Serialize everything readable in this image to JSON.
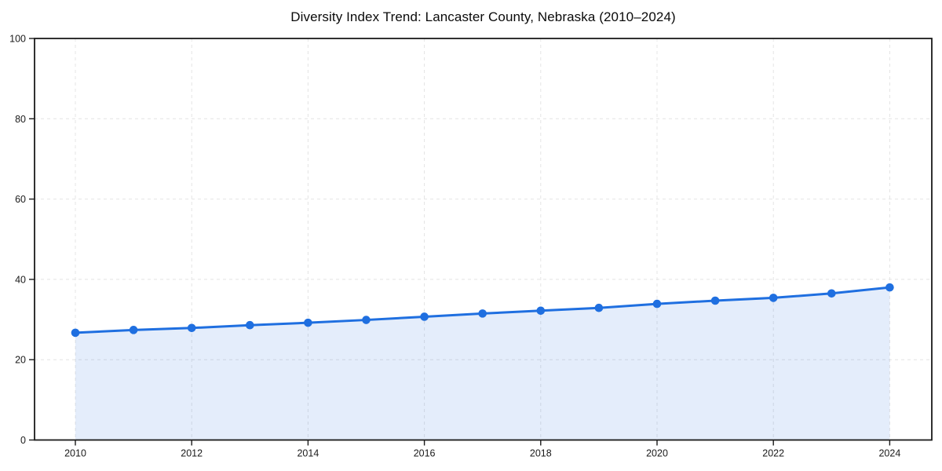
{
  "chart_data": {
    "type": "line",
    "title": "Diversity Index Trend: Lancaster County, Nebraska (2010–2024)",
    "xlabel": "",
    "ylabel": "",
    "x": [
      2010,
      2011,
      2012,
      2013,
      2014,
      2015,
      2016,
      2017,
      2018,
      2019,
      2020,
      2021,
      2022,
      2023,
      2024
    ],
    "series": [
      {
        "name": "Diversity Index",
        "values": [
          26.7,
          27.4,
          27.9,
          28.6,
          29.2,
          29.9,
          30.7,
          31.5,
          32.2,
          32.9,
          33.9,
          34.7,
          35.4,
          36.5,
          38.0
        ]
      }
    ],
    "ylim": [
      0,
      100
    ],
    "yticks": [
      0,
      20,
      40,
      60,
      80,
      100
    ],
    "xticks": [
      2010,
      2012,
      2014,
      2016,
      2018,
      2020,
      2022,
      2024
    ],
    "grid": "dashed, at labeled ticks only",
    "legend": "none",
    "marker": "circle",
    "area_fill": true,
    "colors": {
      "line": "#1f6fe0",
      "marker": "#1f6fe0",
      "fill": "#1f6fe0",
      "fill_opacity": 0.12,
      "grid": "#e4e4e4",
      "spine": "#1a1a1a",
      "tick_label": "#1a1a1a",
      "title": "#0a0a0a",
      "background": "#ffffff"
    }
  }
}
